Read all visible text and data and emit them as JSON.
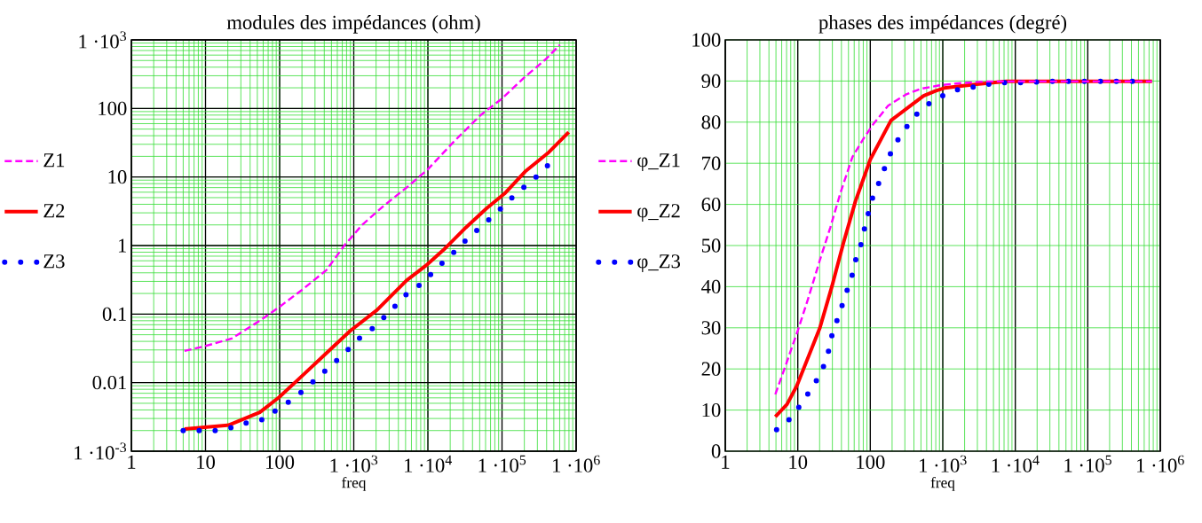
{
  "chart_data": [
    {
      "type": "line",
      "title": "modules des impédances (ohm)",
      "xlabel": "freq",
      "log": "xy",
      "grid": true,
      "legend": "left",
      "xlim": [
        1,
        1000000
      ],
      "ylim": [
        0.001,
        1000
      ],
      "xticks": [
        1,
        10,
        100,
        {
          "value": 1000,
          "label": "1 ·10$^{3}$"
        },
        {
          "value": 10000,
          "label": "1 ·10$^{4}$"
        },
        {
          "value": 100000,
          "label": "1 ·10$^{5}$"
        },
        {
          "value": 1000000,
          "label": "1 ·10$^{6}$"
        }
      ],
      "yticks": [
        {
          "value": 0.001,
          "label": "1 ·10$^{-3}$"
        },
        0.01,
        0.1,
        1,
        10,
        100,
        {
          "value": 1000,
          "label": "1 ·10$^{3}$"
        }
      ],
      "series": [
        {
          "name": "Z1",
          "color": "#ff00ff",
          "line_style": "dashed",
          "x": [
            5.2,
            9.8,
            22.5,
            54,
            98,
            205,
            429,
            745,
            1294,
            2466,
            5150,
            9820,
            22500,
            51500,
            98200,
            205000,
            391000,
            603000
          ],
          "values": [
            0.029,
            0.034,
            0.044,
            0.08,
            0.126,
            0.23,
            0.44,
            1.0,
            2.0,
            3.7,
            7.0,
            12.7,
            33,
            80,
            137,
            290,
            525,
            845
          ]
        },
        {
          "name": "Z2",
          "color": "#ff0000",
          "line_style": "solid",
          "x": [
            5.2,
            20.5,
            54,
            98,
            205,
            429,
            895,
            2050,
            5150,
            9820,
            17060,
            32500,
            62000,
            107700,
            205000,
            429000,
            794000
          ],
          "values": [
            0.0021,
            0.0024,
            0.0037,
            0.0061,
            0.0128,
            0.027,
            0.057,
            0.114,
            0.31,
            0.53,
            0.91,
            1.83,
            3.5,
            5.7,
            12,
            23,
            45
          ]
        },
        {
          "name": "Z3",
          "color": "#0000ff",
          "line_style": "dotted",
          "x": [
            5,
            8.2,
            13.5,
            22,
            36,
            60,
            97,
            160,
            260,
            430,
            700,
            1150,
            1900,
            3100,
            5000,
            8300,
            13500,
            22000,
            36000,
            60000,
            97000,
            160000,
            260000,
            430000
          ],
          "values": [
            0.002,
            0.002,
            0.002,
            0.0022,
            0.0026,
            0.0029,
            0.0042,
            0.006,
            0.0095,
            0.0155,
            0.025,
            0.043,
            0.065,
            0.11,
            0.19,
            0.28,
            0.48,
            0.78,
            1.33,
            2.15,
            3.5,
            5.9,
            9,
            15.3
          ]
        }
      ]
    },
    {
      "type": "line",
      "title": "phases des impédances (degré)",
      "xlabel": "freq",
      "log": "x",
      "grid": true,
      "legend": "left",
      "xlim": [
        1,
        1000000
      ],
      "ylim": [
        0,
        100
      ],
      "xticks": [
        1,
        10,
        100,
        {
          "value": 1000,
          "label": "1 ·10$^{3}$"
        },
        {
          "value": 10000,
          "label": "1 ·10$^{4}$"
        },
        {
          "value": 100000,
          "label": "1 ·10$^{5}$"
        },
        {
          "value": 1000000,
          "label": "1 ·10$^{6}$"
        }
      ],
      "yticks": [
        0,
        10,
        20,
        30,
        40,
        50,
        60,
        70,
        80,
        90,
        100
      ],
      "series": [
        {
          "name": "φ_Z1",
          "color": "#ff00ff",
          "line_style": "dashed",
          "x": [
            4.9,
            7.2,
            10.3,
            13.9,
            20.2,
            28.1,
            39.1,
            56.9,
            82.8,
            110,
            176,
            309,
            494,
            869,
            1527,
            3908,
            769000
          ],
          "values": [
            13.8,
            22.1,
            30,
            37.1,
            46.5,
            54.4,
            63,
            71.6,
            76.3,
            79.5,
            84,
            86.7,
            88.1,
            88.9,
            89.4,
            89.9,
            89.9
          ]
        },
        {
          "name": "φ_Z2",
          "color": "#ff0000",
          "line_style": "solid",
          "x": [
            4.9,
            7.1,
            9.7,
            20.2,
            29.5,
            42.9,
            62.5,
            100,
            193,
            543,
            791,
            1048,
            2946,
            7550,
            769000
          ],
          "values": [
            8.4,
            11.4,
            15.9,
            30,
            40,
            50.8,
            60.8,
            70.9,
            80.4,
            86.4,
            87.6,
            88.3,
            89.2,
            89.9,
            89.9
          ]
        },
        {
          "name": "φ_Z3",
          "color": "#0000ff",
          "line_style": "dotted",
          "x": [
            5.1,
            8.4,
            11.7,
            16.5,
            21.8,
            26.1,
            28.9,
            34.3,
            40.6,
            48.1,
            56.9,
            63.7,
            76.2,
            84.5,
            96.3,
            111,
            140,
            168,
            210,
            292,
            429,
            675,
            1120,
            1876,
            3120,
            5180,
            8690,
            14400,
            23700,
            499000
          ],
          "values": [
            5.2,
            8.3,
            12.1,
            15.9,
            19.8,
            23.7,
            27.6,
            31.5,
            35.3,
            39.2,
            43.1,
            46.9,
            50.8,
            54.7,
            58.6,
            62.4,
            66.3,
            70.2,
            74.1,
            78,
            81.8,
            84.8,
            86.9,
            88.3,
            88.6,
            89.6,
            89.6,
            89.6,
            89.9,
            89.9
          ]
        }
      ]
    }
  ]
}
